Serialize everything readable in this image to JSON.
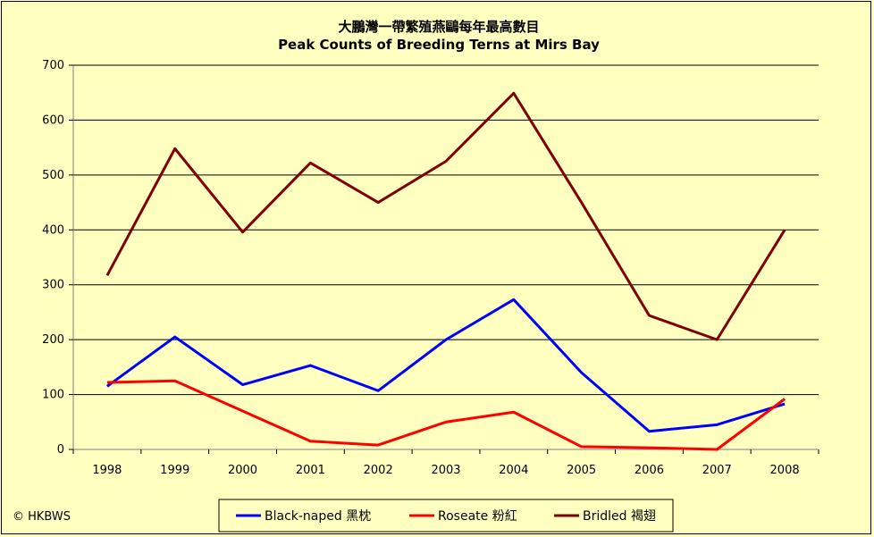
{
  "chart_data": {
    "type": "line",
    "title": "大鵬灣一帶繁殖燕鷗每年最高數目",
    "subtitle": "Peak Counts of Breeding Terns at Mirs Bay",
    "categories": [
      "1998",
      "1999",
      "2000",
      "2001",
      "2002",
      "2003",
      "2004",
      "2005",
      "2006",
      "2007",
      "2008"
    ],
    "ylim": [
      0,
      700
    ],
    "yticks": [
      "0",
      "100",
      "200",
      "300",
      "400",
      "500",
      "600",
      "700"
    ],
    "yticks_values": [
      0,
      100,
      200,
      300,
      400,
      500,
      600,
      700
    ],
    "grid": true,
    "legend_position": "bottom",
    "series": [
      {
        "name": "Black-naped 黑枕",
        "color": "#0000ff",
        "values": [
          115,
          205,
          118,
          153,
          107,
          200,
          273,
          140,
          33,
          45,
          83
        ]
      },
      {
        "name": "Roseate 粉紅",
        "color": "#ff0000",
        "values": [
          122,
          125,
          70,
          15,
          8,
          50,
          68,
          5,
          3,
          0,
          92
        ]
      },
      {
        "name": "Bridled 褐翅",
        "color": "#800000",
        "values": [
          317,
          548,
          396,
          522,
          450,
          525,
          649,
          450,
          244,
          200,
          400
        ]
      }
    ],
    "credit": "© HKBWS"
  },
  "colors": {
    "background": "#ffffc0",
    "plot_background": "#ffffc0",
    "gridline": "#000000"
  }
}
